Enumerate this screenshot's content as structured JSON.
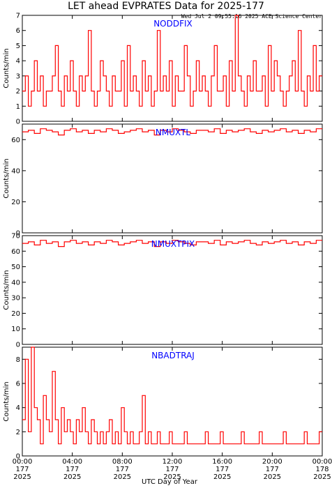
{
  "title": "LET ahead EVPRATES Data for 2025-177",
  "timestamp": "Wed Jul  2 09:55:16 2025 ACE Science Center",
  "xlabel": "UTC Day of Year",
  "x_ticks": [
    {
      "time": "00:00",
      "doy": "177",
      "year": "2025"
    },
    {
      "time": "04:00",
      "doy": "177",
      "year": "2025"
    },
    {
      "time": "08:00",
      "doy": "177",
      "year": "2025"
    },
    {
      "time": "12:00",
      "doy": "177",
      "year": "2025"
    },
    {
      "time": "16:00",
      "doy": "177",
      "year": "2025"
    },
    {
      "time": "20:00",
      "doy": "177",
      "year": "2025"
    },
    {
      "time": "00:00",
      "doy": "178",
      "year": "2025"
    }
  ],
  "colors": {
    "series": "#ff0000",
    "panel_label": "#0000ff",
    "axis": "#000000"
  },
  "chart_data": [
    {
      "type": "line",
      "panel_label": "NODDFIX",
      "ylabel": "Counts/min",
      "ylim": [
        0,
        7
      ],
      "yticks": [
        "0",
        "1",
        "2",
        "3",
        "4",
        "5",
        "6",
        "7"
      ],
      "x_range_hours": [
        0,
        24
      ],
      "series": [
        {
          "values": [
            2,
            3,
            1,
            2,
            4,
            2,
            3,
            1,
            2,
            2,
            3,
            5,
            2,
            1,
            3,
            2,
            4,
            2,
            1,
            3,
            2,
            3,
            6,
            2,
            1,
            2,
            4,
            3,
            2,
            1,
            3,
            2,
            2,
            4,
            1,
            5,
            2,
            3,
            2,
            1,
            4,
            2,
            3,
            1,
            2,
            6,
            2,
            3,
            2,
            4,
            1,
            3,
            2,
            2,
            5,
            3,
            1,
            2,
            4,
            2,
            3,
            2,
            1,
            3,
            5,
            2,
            2,
            3,
            1,
            4,
            2,
            7,
            3,
            2,
            1,
            3,
            2,
            4,
            2,
            2,
            3,
            1,
            5,
            2,
            4,
            3,
            2,
            1,
            2,
            3,
            4,
            2,
            6,
            2,
            1,
            3,
            2,
            5,
            2,
            3
          ]
        }
      ]
    },
    {
      "type": "line",
      "panel_label": "NMUXTL",
      "ylabel": "Counts/min",
      "ylim": [
        0,
        70
      ],
      "yticks": [
        "0",
        "20",
        "40",
        "60"
      ],
      "x_range_hours": [
        0,
        24
      ],
      "series": [
        {
          "values": [
            65,
            66,
            64,
            67,
            66,
            65,
            63,
            66,
            67,
            65,
            66,
            64,
            66,
            65,
            67,
            66,
            64,
            65,
            66,
            67,
            65,
            66,
            63,
            66,
            65,
            67,
            66,
            65,
            64,
            66,
            66,
            65,
            67,
            64,
            66,
            65,
            66,
            67,
            65,
            64,
            66,
            65,
            66,
            67,
            65,
            66,
            64,
            66,
            65,
            67
          ]
        }
      ]
    },
    {
      "type": "line",
      "panel_label": "NMUXTPIX",
      "ylabel": "Counts/min",
      "ylim": [
        0,
        70
      ],
      "yticks": [
        "0",
        "10",
        "20",
        "30",
        "40",
        "50",
        "60",
        "70"
      ],
      "x_range_hours": [
        0,
        24
      ],
      "series": [
        {
          "values": [
            65,
            66,
            64,
            67,
            65,
            66,
            63,
            66,
            67,
            65,
            66,
            64,
            66,
            65,
            67,
            66,
            64,
            65,
            66,
            67,
            65,
            66,
            63,
            66,
            65,
            67,
            66,
            65,
            64,
            66,
            66,
            65,
            67,
            64,
            66,
            65,
            66,
            67,
            65,
            64,
            66,
            65,
            66,
            67,
            65,
            66,
            64,
            66,
            65,
            67
          ]
        }
      ]
    },
    {
      "type": "line",
      "panel_label": "NBADTRAJ",
      "ylabel": "Counts/min",
      "ylim": [
        0,
        9
      ],
      "yticks": [
        "0",
        "2",
        "4",
        "6",
        "8"
      ],
      "x_range_hours": [
        0,
        24
      ],
      "series": [
        {
          "values": [
            3,
            8,
            2,
            9,
            4,
            3,
            1,
            5,
            3,
            2,
            7,
            3,
            1,
            4,
            2,
            3,
            2,
            1,
            3,
            2,
            4,
            2,
            1,
            3,
            2,
            1,
            2,
            1,
            2,
            3,
            1,
            2,
            1,
            4,
            2,
            1,
            2,
            1,
            1,
            2,
            5,
            1,
            2,
            1,
            1,
            2,
            1,
            1,
            1,
            2,
            1,
            1,
            1,
            1,
            2,
            1,
            1,
            1,
            1,
            1,
            1,
            2,
            1,
            1,
            1,
            1,
            2,
            1,
            1,
            1,
            1,
            1,
            1,
            2,
            1,
            1,
            1,
            1,
            1,
            2,
            1,
            1,
            1,
            1,
            1,
            1,
            1,
            2,
            1,
            1,
            1,
            1,
            1,
            1,
            2,
            1,
            1,
            1,
            1,
            2
          ]
        }
      ]
    }
  ]
}
